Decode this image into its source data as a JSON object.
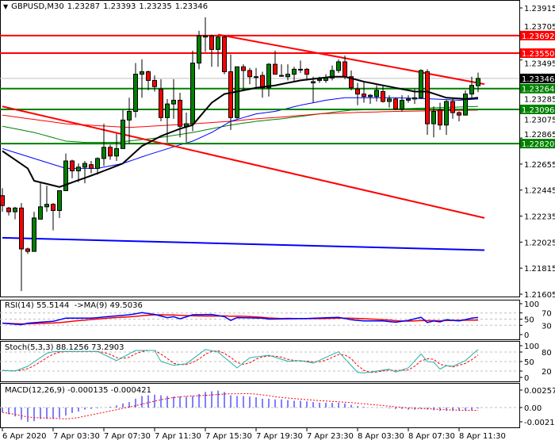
{
  "header": {
    "symbol": "GBPUSD,M30",
    "open": "1.23287",
    "high": "1.23393",
    "low": "1.23235",
    "close": "1.23346"
  },
  "colors": {
    "bull": "#008000",
    "bear": "#ff0000",
    "resistance": "#ff0000",
    "support": "#008000",
    "current": "#000000",
    "ma_fast": "#000000",
    "ma_blue": "#0000ff",
    "ma_red": "#ff0000",
    "ma_green": "#008000",
    "rsi": "#0000ff",
    "rsi_ma": "#ff0000",
    "stoch_main": "#20b2aa",
    "stoch_signal": "#ff0000",
    "macd_hist": "#0000ff",
    "macd_signal": "#ff0000"
  },
  "price_axis": {
    "ticks": [
      "1.23915",
      "1.23705",
      "1.23495",
      "1.23285",
      "1.23075",
      "1.22865",
      "1.22655",
      "1.22445",
      "1.22235",
      "1.22025",
      "1.21815",
      "1.21605"
    ],
    "max": 1.23915,
    "min": 1.21605
  },
  "levels": [
    {
      "price": 1.23692,
      "label": "1.23692",
      "kind": "resistance"
    },
    {
      "price": 1.2355,
      "label": "1.23550",
      "kind": "resistance"
    },
    {
      "price": 1.23264,
      "label": "1.23264",
      "kind": "support"
    },
    {
      "price": 1.23096,
      "label": "1.23096",
      "kind": "support"
    },
    {
      "price": 1.2282,
      "label": "1.22820",
      "kind": "support"
    }
  ],
  "current_price": {
    "price": 1.23346,
    "label": "1.23346"
  },
  "trendlines": [
    {
      "from": [
        "7 Apr 16:30",
        1.237
      ],
      "to": [
        "8 Apr 14:00",
        1.233
      ],
      "color": "#ff0000"
    },
    {
      "from": [
        "6 Apr 23:30",
        1.2312
      ],
      "to": [
        "8 Apr 14:00",
        1.2222
      ],
      "color": "#ff0000"
    },
    {
      "from": [
        "6 Apr 23:30",
        1.2206
      ],
      "to": [
        "8 Apr 14:00",
        1.2196
      ],
      "color": "#0000ff"
    }
  ],
  "candles": [
    [
      "6 Apr 23:30",
      1.224,
      1.2246,
      1.2227,
      1.2232
    ],
    [
      "7 Apr 00:00",
      1.223,
      1.2231,
      1.2224,
      1.2227
    ],
    [
      "7 Apr 00:30",
      1.2227,
      1.2231,
      1.2221,
      1.223
    ],
    [
      "7 Apr 01:00",
      1.223,
      1.2234,
      1.2163,
      1.2197
    ],
    [
      "7 Apr 01:30",
      1.2197,
      1.2198,
      1.2193,
      1.2195
    ],
    [
      "7 Apr 02:00",
      1.2195,
      1.2227,
      1.2195,
      1.2222
    ],
    [
      "7 Apr 02:30",
      1.2221,
      1.225,
      1.2221,
      1.2231
    ],
    [
      "7 Apr 03:00",
      1.2231,
      1.2248,
      1.2227,
      1.2233
    ],
    [
      "7 Apr 03:30",
      1.2233,
      1.2234,
      1.2212,
      1.2228
    ],
    [
      "7 Apr 04:00",
      1.2228,
      1.2244,
      1.2222,
      1.2244
    ],
    [
      "7 Apr 04:30",
      1.2244,
      1.2274,
      1.2244,
      1.2268
    ],
    [
      "7 Apr 05:00",
      1.2268,
      1.2269,
      1.2254,
      1.226
    ],
    [
      "7 Apr 05:30",
      1.226,
      1.2266,
      1.2251,
      1.2263
    ],
    [
      "7 Apr 06:00",
      1.2263,
      1.2268,
      1.225,
      1.2266
    ],
    [
      "7 Apr 06:30",
      1.2265,
      1.2268,
      1.2258,
      1.2262
    ],
    [
      "7 Apr 07:00",
      1.2262,
      1.2271,
      1.2257,
      1.227
    ],
    [
      "7 Apr 07:30",
      1.227,
      1.2298,
      1.2264,
      1.2279
    ],
    [
      "7 Apr 08:00",
      1.2279,
      1.2281,
      1.2269,
      1.2272
    ],
    [
      "7 Apr 08:30",
      1.2272,
      1.229,
      1.2268,
      1.2278
    ],
    [
      "7 Apr 09:00",
      1.2278,
      1.2309,
      1.2278,
      1.2301
    ],
    [
      "7 Apr 09:30",
      1.2301,
      1.2319,
      1.2282,
      1.2308
    ],
    [
      "7 Apr 10:00",
      1.2308,
      1.2347,
      1.2303,
      1.2338
    ],
    [
      "7 Apr 10:30",
      1.2338,
      1.235,
      1.2319,
      1.234
    ],
    [
      "7 Apr 11:00",
      1.234,
      1.2341,
      1.2325,
      1.2333
    ],
    [
      "7 Apr 11:30",
      1.2333,
      1.2337,
      1.2324,
      1.2328
    ],
    [
      "7 Apr 12:00",
      1.2326,
      1.2334,
      1.23,
      1.2303
    ],
    [
      "7 Apr 12:30",
      1.2303,
      1.2318,
      1.2283,
      1.2314
    ],
    [
      "7 Apr 13:00",
      1.2314,
      1.2334,
      1.2302,
      1.2317
    ],
    [
      "7 Apr 13:30",
      1.2317,
      1.2323,
      1.2287,
      1.2296
    ],
    [
      "7 Apr 14:00",
      1.2296,
      1.2307,
      1.2283,
      1.2298
    ],
    [
      "7 Apr 14:30",
      1.2298,
      1.2357,
      1.2292,
      1.2347
    ],
    [
      "7 Apr 15:00",
      1.2347,
      1.2373,
      1.2342,
      1.2369
    ],
    [
      "7 Apr 15:30",
      1.2368,
      1.2384,
      1.2356,
      1.2369
    ],
    [
      "7 Apr 16:00",
      1.2369,
      1.237,
      1.2344,
      1.2358
    ],
    [
      "7 Apr 16:30",
      1.2358,
      1.2369,
      1.2344,
      1.2368
    ],
    [
      "7 Apr 17:00",
      1.2368,
      1.2369,
      1.2338,
      1.234
    ],
    [
      "7 Apr 17:30",
      1.234,
      1.2354,
      1.2293,
      1.2303
    ],
    [
      "7 Apr 18:00",
      1.2303,
      1.2344,
      1.2302,
      1.2344
    ],
    [
      "7 Apr 18:30",
      1.2344,
      1.2346,
      1.2325,
      1.2341
    ],
    [
      "7 Apr 19:00",
      1.2341,
      1.2343,
      1.233,
      1.2336
    ],
    [
      "7 Apr 19:30",
      1.2336,
      1.2343,
      1.2327,
      1.2336
    ],
    [
      "7 Apr 20:00",
      1.2337,
      1.234,
      1.2319,
      1.2327
    ],
    [
      "7 Apr 20:30",
      1.2327,
      1.2347,
      1.232,
      1.2346
    ],
    [
      "7 Apr 21:00",
      1.2346,
      1.2357,
      1.2338,
      1.2338
    ],
    [
      "7 Apr 21:30",
      1.2337,
      1.2346,
      1.2336,
      1.2337
    ],
    [
      "7 Apr 22:00",
      1.2336,
      1.2346,
      1.2333,
      1.2338
    ],
    [
      "7 Apr 22:30",
      1.2338,
      1.2344,
      1.2332,
      1.2342
    ],
    [
      "7 Apr 23:00",
      1.2342,
      1.2349,
      1.2339,
      1.2342
    ],
    [
      "7 Apr 23:30",
      1.2342,
      1.2343,
      1.2334,
      1.2338
    ],
    [
      "8 Apr 00:00",
      1.2331,
      1.2336,
      1.2315,
      1.2332
    ],
    [
      "8 Apr 00:30",
      1.2333,
      1.2336,
      1.2331,
      1.2334
    ],
    [
      "8 Apr 01:00",
      1.2333,
      1.2338,
      1.2331,
      1.2335
    ],
    [
      "8 Apr 01:30",
      1.2335,
      1.2345,
      1.2333,
      1.2341
    ],
    [
      "8 Apr 02:00",
      1.2341,
      1.235,
      1.2339,
      1.2348
    ],
    [
      "8 Apr 02:30",
      1.2348,
      1.2353,
      1.2334,
      1.2336
    ],
    [
      "8 Apr 03:00",
      1.2336,
      1.2341,
      1.2325,
      1.2327
    ],
    [
      "8 Apr 03:30",
      1.2326,
      1.2331,
      1.2313,
      1.2322
    ],
    [
      "8 Apr 04:00",
      1.2322,
      1.2332,
      1.2315,
      1.232
    ],
    [
      "8 Apr 04:30",
      1.232,
      1.2322,
      1.2314,
      1.2321
    ],
    [
      "8 Apr 05:00",
      1.232,
      1.2329,
      1.2316,
      1.2325
    ],
    [
      "8 Apr 05:30",
      1.2324,
      1.2329,
      1.2315,
      1.2316
    ],
    [
      "8 Apr 06:00",
      1.2316,
      1.2321,
      1.2311,
      1.2318
    ],
    [
      "8 Apr 06:30",
      1.2318,
      1.2319,
      1.2309,
      1.231
    ],
    [
      "8 Apr 07:00",
      1.231,
      1.2321,
      1.2308,
      1.2317
    ],
    [
      "8 Apr 07:30",
      1.2317,
      1.2321,
      1.2315,
      1.2318
    ],
    [
      "8 Apr 08:00",
      1.2318,
      1.2326,
      1.2314,
      1.2319
    ],
    [
      "8 Apr 08:30",
      1.2319,
      1.2342,
      1.2318,
      1.2341
    ],
    [
      "8 Apr 09:00",
      1.234,
      1.2342,
      1.2289,
      1.2298
    ],
    [
      "8 Apr 09:30",
      1.2298,
      1.2312,
      1.2287,
      1.2308
    ],
    [
      "8 Apr 10:00",
      1.2309,
      1.2315,
      1.2293,
      1.2297
    ],
    [
      "8 Apr 10:30",
      1.2297,
      1.2317,
      1.2289,
      1.2316
    ],
    [
      "8 Apr 11:00",
      1.2316,
      1.2318,
      1.2302,
      1.2307
    ],
    [
      "8 Apr 11:30",
      1.2307,
      1.2308,
      1.23,
      1.2305
    ],
    [
      "8 Apr 12:00",
      1.2305,
      1.2325,
      1.2305,
      1.2322
    ],
    [
      "8 Apr 12:30",
      1.2322,
      1.2336,
      1.2319,
      1.2329
    ],
    [
      "8 Apr 13:00",
      1.23287,
      1.23393,
      1.23235,
      1.23346
    ]
  ],
  "moving_averages": {
    "fast_black": [
      [
        "6 Apr 23:30",
        1.2276
      ],
      [
        "7 Apr 01:30",
        1.2262
      ],
      [
        "7 Apr 02:00",
        1.2252
      ],
      [
        "7 Apr 04:00",
        1.2247
      ],
      [
        "7 Apr 07:00",
        1.2258
      ],
      [
        "7 Apr 09:00",
        1.2266
      ],
      [
        "7 Apr 10:30",
        1.228
      ],
      [
        "7 Apr 12:00",
        1.2288
      ],
      [
        "7 Apr 13:30",
        1.2294
      ],
      [
        "7 Apr 14:30",
        1.2297
      ],
      [
        "7 Apr 16:00",
        1.2315
      ],
      [
        "7 Apr 17:00",
        1.2322
      ],
      [
        "7 Apr 18:00",
        1.2324
      ],
      [
        "7 Apr 19:30",
        1.2327
      ],
      [
        "7 Apr 21:00",
        1.2329
      ],
      [
        "7 Apr 23:00",
        1.2333
      ],
      [
        "8 Apr 01:30",
        1.2336
      ],
      [
        "8 Apr 02:30",
        1.2336
      ],
      [
        "8 Apr 04:00",
        1.2332
      ],
      [
        "8 Apr 06:00",
        1.2328
      ],
      [
        "8 Apr 08:00",
        1.2324
      ],
      [
        "8 Apr 09:00",
        1.2324
      ],
      [
        "8 Apr 10:30",
        1.2319
      ],
      [
        "8 Apr 12:00",
        1.2318
      ],
      [
        "8 Apr 13:00",
        1.2319
      ]
    ],
    "blue": [
      [
        "6 Apr 23:30",
        1.2278
      ],
      [
        "7 Apr 02:00",
        1.227
      ],
      [
        "7 Apr 04:30",
        1.2262
      ],
      [
        "7 Apr 07:00",
        1.2262
      ],
      [
        "7 Apr 09:00",
        1.2266
      ],
      [
        "7 Apr 11:00",
        1.2273
      ],
      [
        "7 Apr 13:30",
        1.2281
      ],
      [
        "7 Apr 14:30",
        1.2284
      ],
      [
        "7 Apr 16:00",
        1.2291
      ],
      [
        "7 Apr 17:30",
        1.23
      ],
      [
        "7 Apr 19:30",
        1.2306
      ],
      [
        "7 Apr 21:00",
        1.2308
      ],
      [
        "7 Apr 23:00",
        1.2313
      ],
      [
        "8 Apr 01:00",
        1.2317
      ],
      [
        "8 Apr 02:30",
        1.2319
      ],
      [
        "8 Apr 06:30",
        1.2319
      ],
      [
        "8 Apr 09:30",
        1.2318
      ],
      [
        "8 Apr 11:30",
        1.2317
      ],
      [
        "8 Apr 13:00",
        1.2318
      ]
    ],
    "red": [
      [
        "6 Apr 23:30",
        1.2305
      ],
      [
        "7 Apr 04:30",
        1.2298
      ],
      [
        "7 Apr 09:30",
        1.2295
      ],
      [
        "7 Apr 14:30",
        1.2298
      ],
      [
        "7 Apr 17:30",
        1.23
      ],
      [
        "7 Apr 19:30",
        1.2302
      ],
      [
        "7 Apr 21:00",
        1.2303
      ],
      [
        "8 Apr 00:30",
        1.2306
      ],
      [
        "8 Apr 03:00",
        1.2307
      ],
      [
        "8 Apr 06:30",
        1.2308
      ],
      [
        "8 Apr 13:00",
        1.2309
      ]
    ],
    "green": [
      [
        "6 Apr 23:30",
        1.2296
      ],
      [
        "7 Apr 02:00",
        1.2291
      ],
      [
        "7 Apr 04:30",
        1.2284
      ],
      [
        "7 Apr 06:00",
        1.2283
      ],
      [
        "7 Apr 08:30",
        1.2283
      ],
      [
        "7 Apr 12:00",
        1.2287
      ],
      [
        "7 Apr 14:30",
        1.2291
      ],
      [
        "7 Apr 17:30",
        1.2297
      ],
      [
        "7 Apr 19:30",
        1.23
      ],
      [
        "7 Apr 21:30",
        1.2302
      ],
      [
        "8 Apr 00:30",
        1.2306
      ],
      [
        "8 Apr 03:00",
        1.2309
      ],
      [
        "8 Apr 06:30",
        1.231
      ],
      [
        "8 Apr 13:00",
        1.2312
      ]
    ]
  },
  "rsi": {
    "label": "RSI(14) 55.5144  ->MA(9) 49.5036",
    "levels": [
      "100",
      "70",
      "50",
      "30",
      "0"
    ],
    "values": [
      [
        "6 Apr 23:30",
        37
      ],
      [
        "7 Apr 01:00",
        32
      ],
      [
        "7 Apr 01:30",
        37
      ],
      [
        "7 Apr 03:30",
        43
      ],
      [
        "7 Apr 04:30",
        53
      ],
      [
        "7 Apr 06:30",
        53
      ],
      [
        "7 Apr 07:30",
        57
      ],
      [
        "7 Apr 09:30",
        64
      ],
      [
        "7 Apr 10:30",
        71
      ],
      [
        "7 Apr 11:30",
        65
      ],
      [
        "7 Apr 12:30",
        55
      ],
      [
        "7 Apr 13:00",
        58
      ],
      [
        "7 Apr 13:30",
        51
      ],
      [
        "7 Apr 14:30",
        64
      ],
      [
        "7 Apr 16:00",
        65
      ],
      [
        "7 Apr 17:00",
        58
      ],
      [
        "7 Apr 17:30",
        46
      ],
      [
        "7 Apr 18:00",
        55
      ],
      [
        "7 Apr 20:00",
        53
      ],
      [
        "7 Apr 20:30",
        50
      ],
      [
        "7 Apr 23:30",
        52
      ],
      [
        "8 Apr 02:00",
        56
      ],
      [
        "8 Apr 03:00",
        48
      ],
      [
        "8 Apr 04:00",
        44
      ],
      [
        "8 Apr 05:30",
        44
      ],
      [
        "8 Apr 06:30",
        40
      ],
      [
        "8 Apr 07:30",
        46
      ],
      [
        "8 Apr 08:30",
        56
      ],
      [
        "8 Apr 09:00",
        39
      ],
      [
        "8 Apr 09:30",
        44
      ],
      [
        "8 Apr 10:00",
        41
      ],
      [
        "8 Apr 10:30",
        48
      ],
      [
        "8 Apr 11:30",
        44
      ],
      [
        "8 Apr 12:30",
        53
      ],
      [
        "8 Apr 13:00",
        55.5
      ]
    ]
  },
  "stochastic": {
    "label": "Stoch(5,3,3) 88.1256 73.2903",
    "levels": [
      "100",
      "80",
      "50",
      "20",
      "0"
    ],
    "main": [
      [
        "6 Apr 23:30",
        22
      ],
      [
        "7 Apr 00:30",
        20
      ],
      [
        "7 Apr 01:30",
        35
      ],
      [
        "7 Apr 03:00",
        76
      ],
      [
        "7 Apr 03:30",
        81
      ],
      [
        "7 Apr 05:00",
        82
      ],
      [
        "7 Apr 07:00",
        82
      ],
      [
        "7 Apr 07:30",
        72
      ],
      [
        "7 Apr 08:30",
        53
      ],
      [
        "7 Apr 10:00",
        85
      ],
      [
        "7 Apr 11:30",
        85
      ],
      [
        "7 Apr 12:00",
        50
      ],
      [
        "7 Apr 13:00",
        38
      ],
      [
        "7 Apr 14:00",
        43
      ],
      [
        "7 Apr 15:30",
        88
      ],
      [
        "7 Apr 16:30",
        80
      ],
      [
        "7 Apr 18:00",
        30
      ],
      [
        "7 Apr 19:00",
        62
      ],
      [
        "7 Apr 20:30",
        70
      ],
      [
        "7 Apr 22:00",
        51
      ],
      [
        "7 Apr 23:00",
        53
      ],
      [
        "8 Apr 00:00",
        45
      ],
      [
        "8 Apr 02:00",
        81
      ],
      [
        "8 Apr 02:30",
        59
      ],
      [
        "8 Apr 03:30",
        16
      ],
      [
        "8 Apr 04:00",
        14
      ],
      [
        "8 Apr 05:00",
        20
      ],
      [
        "8 Apr 06:00",
        26
      ],
      [
        "8 Apr 06:30",
        17
      ],
      [
        "8 Apr 07:30",
        30
      ],
      [
        "8 Apr 08:30",
        74
      ],
      [
        "8 Apr 09:00",
        50
      ],
      [
        "8 Apr 09:30",
        48
      ],
      [
        "8 Apr 10:00",
        26
      ],
      [
        "8 Apr 10:30",
        37
      ],
      [
        "8 Apr 11:00",
        35
      ],
      [
        "8 Apr 12:00",
        53
      ],
      [
        "8 Apr 13:00",
        88.1
      ]
    ]
  },
  "macd": {
    "label": "MACD(12,26,9) -0.000135 -0.000421",
    "scale": {
      "max": 0.002571,
      "min": -0.002104
    },
    "levels": [
      "0.002571",
      "0.00",
      "-0.002104"
    ],
    "main": [
      -0.0007,
      -0.001,
      -0.0013,
      -0.0018,
      -0.0021,
      -0.002,
      -0.0017,
      -0.0017,
      -0.0017,
      -0.0015,
      -0.0012,
      -0.0008,
      -0.0006,
      -0.0003,
      -0.0002,
      -0.0001,
      0,
      0.0001,
      0.0003,
      0.0006,
      0.0008,
      0.0013,
      0.0017,
      0.0018,
      0.0019,
      0.0018,
      0.0017,
      0.0016,
      0.0016,
      0.0016,
      0.0017,
      0.002,
      0.0023,
      0.0024,
      0.0025,
      0.0023,
      0.0018,
      0.0017,
      0.0017,
      0.0016,
      0.0015,
      0.0013,
      0.0013,
      0.0012,
      0.0012,
      0.0011,
      0.001,
      0.001,
      0.0009,
      0.0008,
      0.0007,
      0.0007,
      0.0007,
      0.0007,
      0.0006,
      0.0004,
      0.0002,
      0.0001,
      0,
      0,
      -3e-05,
      -0.0001,
      -0.0002,
      -0.0002,
      -0.0003,
      -0.0003,
      -0.0002,
      -0.0003,
      -0.0004,
      -0.0005,
      -0.0005,
      -0.0005,
      -0.0005,
      -0.0005,
      -0.0004,
      -0.000135
    ]
  },
  "time_axis": {
    "labels": [
      "6 Apr 2020",
      "7 Apr 03:30",
      "7 Apr 07:30",
      "7 Apr 11:30",
      "7 Apr 15:30",
      "7 Apr 19:30",
      "7 Apr 23:30",
      "8 Apr 03:30",
      "8 Apr 07:30",
      "8 Apr 11:30"
    ]
  }
}
